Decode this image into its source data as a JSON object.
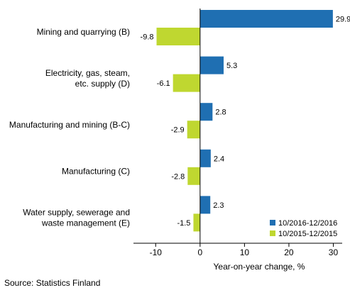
{
  "chart_data": {
    "type": "bar",
    "orientation": "horizontal",
    "categories": [
      [
        "Mining and quarrying (B)"
      ],
      [
        "Electricity, gas, steam,",
        "etc. supply (D)"
      ],
      [
        "Manufacturing and mining (B-C)"
      ],
      [
        "Manufacturing (C)"
      ],
      [
        "Water supply, sewerage and",
        "waste management (E)"
      ]
    ],
    "series": [
      {
        "name": "10/2016-12/2016",
        "color": "#1f6fb2",
        "values": [
          29.9,
          5.3,
          2.8,
          2.4,
          2.3
        ]
      },
      {
        "name": "10/2015-12/2015",
        "color": "#bfd730",
        "values": [
          -9.8,
          -6.1,
          -2.9,
          -2.8,
          -1.5
        ]
      }
    ],
    "value_labels": [
      [
        "29.9",
        "5.3",
        "2.8",
        "2.4",
        "2.3"
      ],
      [
        "-9.8",
        "-6.1",
        "-2.9",
        "-2.8",
        "-1.5"
      ]
    ],
    "xlim": [
      -15,
      32
    ],
    "xticks": [
      -10,
      0,
      10,
      20,
      30
    ],
    "xtick_labels": [
      "-10",
      "0",
      "10",
      "20",
      "30"
    ],
    "xlabel": "Year-on-year change, %",
    "legend_position": "bottom-right",
    "grid": false
  },
  "source": "Source: Statistics Finland"
}
